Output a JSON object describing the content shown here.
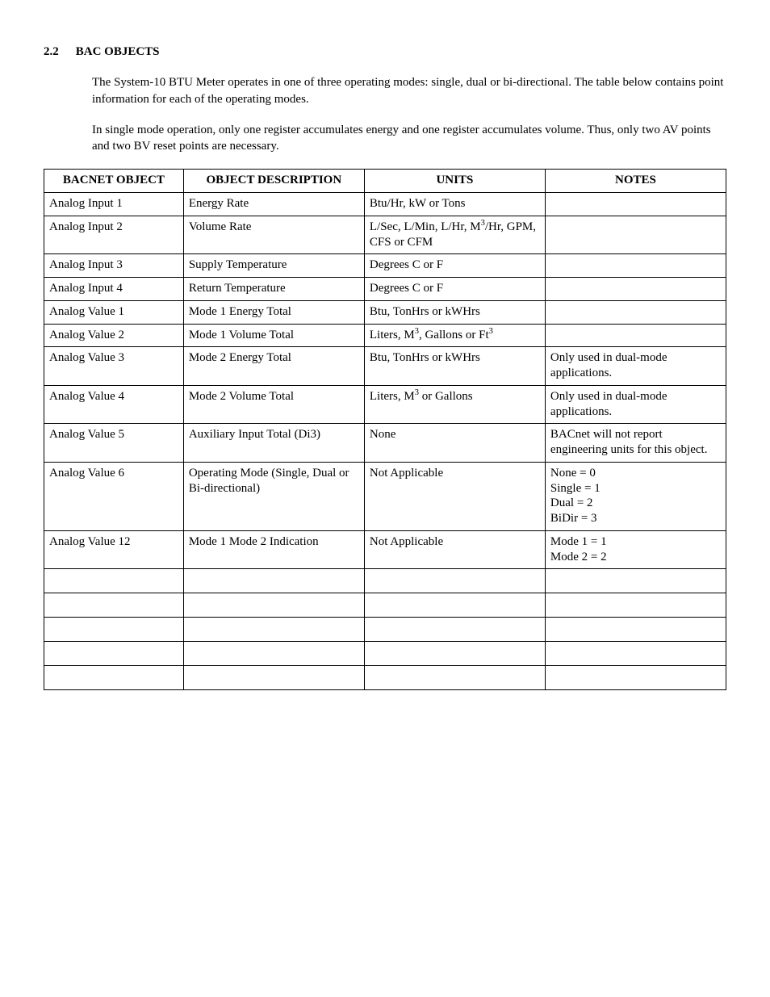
{
  "section": {
    "number": "2.2",
    "title": "BAC OBJECTS"
  },
  "paragraphs": [
    "The System-10 BTU Meter operates in one of three operating modes: single, dual or bi-directional. The table below contains point information for each of the operating modes.",
    "In single mode operation, only one register accumulates energy and one register accumulates volume. Thus, only two AV points and two BV reset points are necessary."
  ],
  "table": {
    "headers": [
      "BACNET OBJECT",
      "OBJECT DESCRIPTION",
      "UNITS",
      "NOTES"
    ],
    "rows": [
      {
        "obj": "Analog Input 1",
        "desc": "Energy Rate",
        "units": "Btu/Hr, kW or Tons",
        "notes": ""
      },
      {
        "obj": "Analog Input 2",
        "desc": "Volume Rate",
        "units": "L/Sec, L/Min, L/Hr, M³/Hr, GPM, CFS or CFM",
        "notes": ""
      },
      {
        "obj": "Analog Input 3",
        "desc": "Supply Temperature",
        "units": "Degrees C or F",
        "notes": ""
      },
      {
        "obj": "Analog Input 4",
        "desc": "Return Temperature",
        "units": "Degrees C or F",
        "notes": ""
      },
      {
        "obj": "Analog Value 1",
        "desc": "Mode 1 Energy Total",
        "units": "Btu, TonHrs or kWHrs",
        "notes": ""
      },
      {
        "obj": "Analog Value 2",
        "desc": "Mode 1 Volume Total",
        "units": "Liters, M³, Gallons or Ft³",
        "notes": ""
      },
      {
        "obj": "Analog Value 3",
        "desc": "Mode 2 Energy Total",
        "units": "Btu, TonHrs or kWHrs",
        "notes": "Only used in dual-mode applications."
      },
      {
        "obj": "Analog Value 4",
        "desc": "Mode 2 Volume Total",
        "units": "Liters, M³ or Gallons",
        "notes": "Only used in dual-mode applications."
      },
      {
        "obj": "Analog Value 5",
        "desc": "Auxiliary Input Total (Di3)",
        "units": "None",
        "notes": "BACnet will not report engineering units for this object."
      },
      {
        "obj": "Analog Value 6",
        "desc": "Operating Mode (Single, Dual or Bi-directional)",
        "units": "Not Applicable",
        "notes": "None = 0\nSingle = 1\nDual = 2\nBiDir = 3"
      },
      {
        "obj": "Analog Value 12",
        "desc": "Mode 1 Mode 2 Indication",
        "units": "Not Applicable",
        "notes": "Mode 1 = 1\nMode 2 = 2"
      }
    ],
    "empty_row_count": 5
  }
}
